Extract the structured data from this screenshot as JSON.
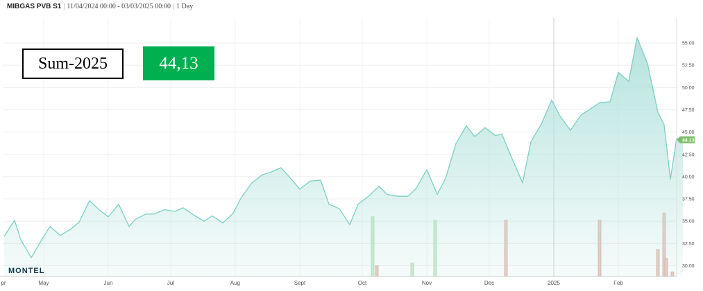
{
  "header": {
    "symbol": "MIBGAS PVB S1",
    "range": "11/04/2024 00:00 - 03/03/2025 00:00",
    "interval": "1 Day"
  },
  "product_label": "Sum-2025",
  "current_value": "44,13",
  "logo": "MONTEL",
  "colors": {
    "line": "#7ccfc4",
    "fill_top": "#b2e2dc",
    "bar_green": "#cfe9cf",
    "bar_red": "#eacbc4",
    "value_box": "#00b050",
    "tag": "#7cbf6a"
  },
  "chart_data": {
    "type": "area",
    "x_labels": [
      "pr",
      "May",
      "Jun",
      "Jul",
      "Aug",
      "Sept",
      "Oct",
      "Nov",
      "Dec",
      "2025",
      "Feb"
    ],
    "y_ticks": [
      "30.00",
      "32.50",
      "35.00",
      "37.50",
      "40.00",
      "42.50",
      "45.00",
      "47.50",
      "50.00",
      "52.50",
      "55.00"
    ],
    "ylim": [
      29.2,
      57.0
    ],
    "grid": true,
    "last_value_tag": "44.13",
    "x_dates": [
      "2024-04-11",
      "2024-04-16",
      "2024-04-19",
      "2024-04-24",
      "2024-04-29",
      "2024-05-03",
      "2024-05-08",
      "2024-05-13",
      "2024-05-17",
      "2024-05-22",
      "2024-05-27",
      "2024-05-31",
      "2024-06-05",
      "2024-06-10",
      "2024-06-13",
      "2024-06-18",
      "2024-06-22",
      "2024-06-27",
      "2024-07-02",
      "2024-07-06",
      "2024-07-11",
      "2024-07-16",
      "2024-07-20",
      "2024-07-25",
      "2024-07-30",
      "2024-08-03",
      "2024-08-08",
      "2024-08-13",
      "2024-08-17",
      "2024-08-22",
      "2024-08-27",
      "2024-08-31",
      "2024-09-05",
      "2024-09-10",
      "2024-09-14",
      "2024-09-19",
      "2024-09-24",
      "2024-09-28",
      "2024-10-03",
      "2024-10-08",
      "2024-10-12",
      "2024-10-17",
      "2024-10-22",
      "2024-10-26",
      "2024-10-31",
      "2024-11-05",
      "2024-11-09",
      "2024-11-14",
      "2024-11-19",
      "2024-11-23",
      "2024-11-28",
      "2024-12-03",
      "2024-12-06",
      "2024-12-11",
      "2024-12-16",
      "2024-12-20",
      "2024-12-25",
      "2024-12-30",
      "2025-01-03",
      "2025-01-08",
      "2025-01-13",
      "2025-01-17",
      "2025-01-22",
      "2025-01-27",
      "2025-01-31",
      "2025-02-05",
      "2025-02-09",
      "2025-02-14",
      "2025-02-19",
      "2025-02-22",
      "2025-02-25",
      "2025-02-28",
      "2025-03-03"
    ],
    "values": [
      33.3,
      35.1,
      32.9,
      30.9,
      32.9,
      34.4,
      33.4,
      34.1,
      34.9,
      37.3,
      36.2,
      35.5,
      36.9,
      34.4,
      35.2,
      35.8,
      35.8,
      36.3,
      36.1,
      36.5,
      35.7,
      35.0,
      35.6,
      34.8,
      35.9,
      37.7,
      39.3,
      40.2,
      40.5,
      41.0,
      39.7,
      38.6,
      39.5,
      39.6,
      36.9,
      36.4,
      34.6,
      36.9,
      37.8,
      38.9,
      38.0,
      37.8,
      37.8,
      38.7,
      40.8,
      38.0,
      39.8,
      43.7,
      45.7,
      44.5,
      45.5,
      44.6,
      44.8,
      42.0,
      39.3,
      43.9,
      45.9,
      48.6,
      46.8,
      45.2,
      46.9,
      47.5,
      48.3,
      48.4,
      51.7,
      50.7,
      55.6,
      52.7,
      47.2,
      45.8,
      39.7,
      44.3,
      44.1
    ],
    "bars": [
      {
        "date": "2024-10-05",
        "color": "green",
        "value": 35.5
      },
      {
        "date": "2024-10-07",
        "color": "red",
        "value": 30.0
      },
      {
        "date": "2024-10-24",
        "color": "green",
        "value": 30.3
      },
      {
        "date": "2024-11-04",
        "color": "green",
        "value": 35.1
      },
      {
        "date": "2024-12-08",
        "color": "red",
        "value": 35.1
      },
      {
        "date": "2025-01-22",
        "color": "red",
        "value": 35.1
      },
      {
        "date": "2025-02-19",
        "color": "red",
        "value": 31.8
      },
      {
        "date": "2025-02-22",
        "color": "red",
        "value": 35.9
      },
      {
        "date": "2025-02-23",
        "color": "red",
        "value": 30.8
      },
      {
        "date": "2025-02-26",
        "color": "red",
        "value": 29.3
      }
    ]
  }
}
